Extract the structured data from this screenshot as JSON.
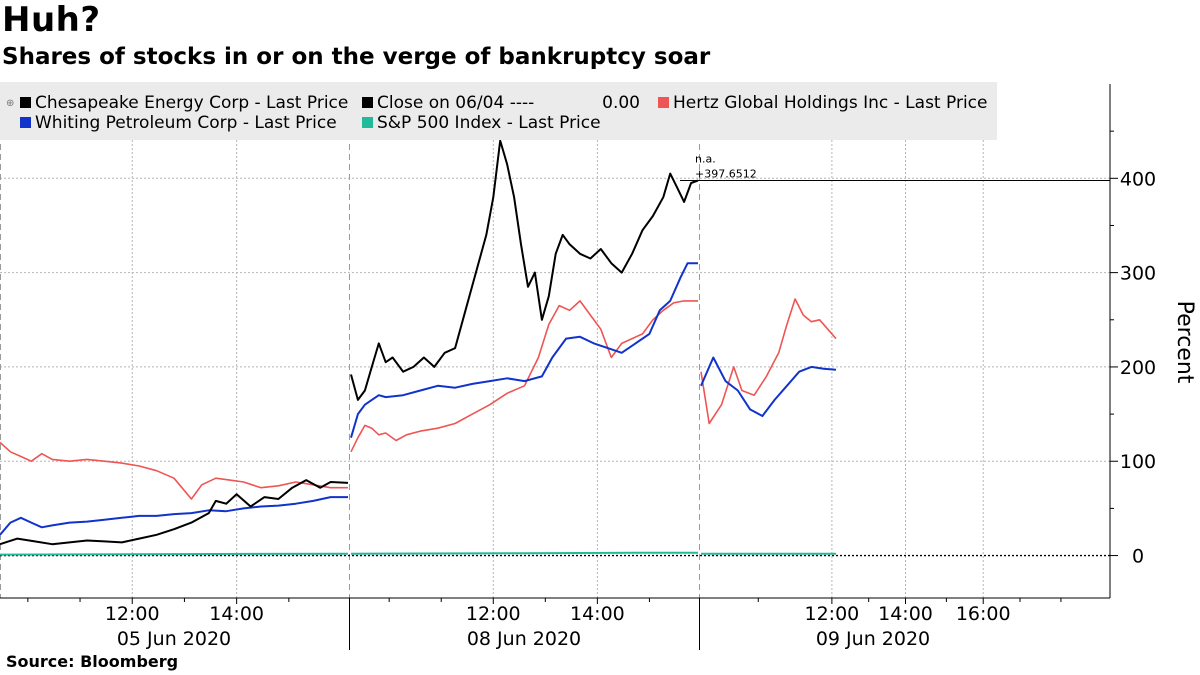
{
  "title": "Huh?",
  "subtitle": "Shares of stocks in or on the verge of bankruptcy soar",
  "source": "Source: Bloomberg",
  "chart_data": {
    "type": "line",
    "ylabel": "Percent",
    "ylim": [
      -45,
      500
    ],
    "y_ticks": [
      0,
      100,
      200,
      300,
      400
    ],
    "grid": true,
    "legend_position": "top-left",
    "x_time_ticks": [
      {
        "session": 0,
        "label": "12:00"
      },
      {
        "session": 0,
        "label": "14:00"
      },
      {
        "session": 1,
        "label": "12:00"
      },
      {
        "session": 1,
        "label": "14:00"
      },
      {
        "session": 2,
        "label": "12:00"
      },
      {
        "session": 2,
        "label": "14:00"
      },
      {
        "session": 2,
        "label": "16:00"
      }
    ],
    "x_day_labels": [
      "05 Jun 2020",
      "08 Jun 2020",
      "09 Jun 2020"
    ],
    "reference_line": {
      "name": "Close on 06/04 ----",
      "value_label": "0.00",
      "value": 0
    },
    "last_value_annotation": {
      "line1": "n.a.",
      "line2": "+397.6512",
      "value": 397.65
    },
    "series": [
      {
        "name": "Chesapeake Energy Corp - Last Price",
        "color": "#000000",
        "points": [
          [
            0,
            0.0,
            12
          ],
          [
            0,
            0.05,
            18
          ],
          [
            0,
            0.1,
            15
          ],
          [
            0,
            0.15,
            12
          ],
          [
            0,
            0.2,
            14
          ],
          [
            0,
            0.25,
            16
          ],
          [
            0,
            0.3,
            15
          ],
          [
            0,
            0.35,
            14
          ],
          [
            0,
            0.4,
            18
          ],
          [
            0,
            0.45,
            22
          ],
          [
            0,
            0.5,
            28
          ],
          [
            0,
            0.55,
            35
          ],
          [
            0,
            0.6,
            45
          ],
          [
            0,
            0.62,
            58
          ],
          [
            0,
            0.65,
            55
          ],
          [
            0,
            0.68,
            65
          ],
          [
            0,
            0.72,
            52
          ],
          [
            0,
            0.76,
            62
          ],
          [
            0,
            0.8,
            60
          ],
          [
            0,
            0.84,
            72
          ],
          [
            0,
            0.88,
            80
          ],
          [
            0,
            0.92,
            72
          ],
          [
            0,
            0.95,
            78
          ],
          [
            0,
            1.0,
            77
          ],
          [
            1,
            0.0,
            192
          ],
          [
            1,
            0.02,
            165
          ],
          [
            1,
            0.04,
            175
          ],
          [
            1,
            0.06,
            200
          ],
          [
            1,
            0.08,
            225
          ],
          [
            1,
            0.1,
            205
          ],
          [
            1,
            0.12,
            210
          ],
          [
            1,
            0.15,
            195
          ],
          [
            1,
            0.18,
            200
          ],
          [
            1,
            0.21,
            210
          ],
          [
            1,
            0.24,
            200
          ],
          [
            1,
            0.27,
            215
          ],
          [
            1,
            0.3,
            220
          ],
          [
            1,
            0.33,
            260
          ],
          [
            1,
            0.36,
            300
          ],
          [
            1,
            0.39,
            340
          ],
          [
            1,
            0.41,
            380
          ],
          [
            1,
            0.43,
            440
          ],
          [
            1,
            0.45,
            415
          ],
          [
            1,
            0.47,
            380
          ],
          [
            1,
            0.49,
            330
          ],
          [
            1,
            0.51,
            285
          ],
          [
            1,
            0.53,
            300
          ],
          [
            1,
            0.55,
            250
          ],
          [
            1,
            0.57,
            275
          ],
          [
            1,
            0.59,
            320
          ],
          [
            1,
            0.61,
            340
          ],
          [
            1,
            0.63,
            330
          ],
          [
            1,
            0.66,
            320
          ],
          [
            1,
            0.69,
            315
          ],
          [
            1,
            0.72,
            325
          ],
          [
            1,
            0.75,
            310
          ],
          [
            1,
            0.78,
            300
          ],
          [
            1,
            0.81,
            320
          ],
          [
            1,
            0.84,
            345
          ],
          [
            1,
            0.87,
            360
          ],
          [
            1,
            0.9,
            380
          ],
          [
            1,
            0.92,
            405
          ],
          [
            1,
            0.94,
            390
          ],
          [
            1,
            0.96,
            375
          ],
          [
            1,
            0.98,
            395
          ],
          [
            1,
            1.0,
            397.65
          ]
        ]
      },
      {
        "name": "Whiting Petroleum Corp - Last Price",
        "color": "#1133cc",
        "points": [
          [
            0,
            0.0,
            22
          ],
          [
            0,
            0.03,
            35
          ],
          [
            0,
            0.06,
            40
          ],
          [
            0,
            0.09,
            35
          ],
          [
            0,
            0.12,
            30
          ],
          [
            0,
            0.15,
            32
          ],
          [
            0,
            0.2,
            35
          ],
          [
            0,
            0.25,
            36
          ],
          [
            0,
            0.3,
            38
          ],
          [
            0,
            0.35,
            40
          ],
          [
            0,
            0.4,
            42
          ],
          [
            0,
            0.45,
            42
          ],
          [
            0,
            0.5,
            44
          ],
          [
            0,
            0.55,
            45
          ],
          [
            0,
            0.6,
            48
          ],
          [
            0,
            0.65,
            47
          ],
          [
            0,
            0.7,
            50
          ],
          [
            0,
            0.75,
            52
          ],
          [
            0,
            0.8,
            53
          ],
          [
            0,
            0.85,
            55
          ],
          [
            0,
            0.9,
            58
          ],
          [
            0,
            0.95,
            62
          ],
          [
            0,
            1.0,
            62
          ],
          [
            1,
            0.0,
            125
          ],
          [
            1,
            0.02,
            150
          ],
          [
            1,
            0.04,
            160
          ],
          [
            1,
            0.06,
            165
          ],
          [
            1,
            0.08,
            170
          ],
          [
            1,
            0.1,
            168
          ],
          [
            1,
            0.15,
            170
          ],
          [
            1,
            0.2,
            175
          ],
          [
            1,
            0.25,
            180
          ],
          [
            1,
            0.3,
            178
          ],
          [
            1,
            0.35,
            182
          ],
          [
            1,
            0.4,
            185
          ],
          [
            1,
            0.45,
            188
          ],
          [
            1,
            0.5,
            185
          ],
          [
            1,
            0.55,
            190
          ],
          [
            1,
            0.58,
            210
          ],
          [
            1,
            0.62,
            230
          ],
          [
            1,
            0.66,
            232
          ],
          [
            1,
            0.7,
            225
          ],
          [
            1,
            0.74,
            220
          ],
          [
            1,
            0.78,
            215
          ],
          [
            1,
            0.82,
            225
          ],
          [
            1,
            0.86,
            235
          ],
          [
            1,
            0.89,
            260
          ],
          [
            1,
            0.92,
            270
          ],
          [
            1,
            0.95,
            295
          ],
          [
            1,
            0.97,
            310
          ],
          [
            1,
            1.0,
            310
          ],
          [
            2,
            0.0,
            180
          ],
          [
            2,
            0.03,
            210
          ],
          [
            2,
            0.06,
            185
          ],
          [
            2,
            0.09,
            175
          ],
          [
            2,
            0.12,
            155
          ],
          [
            2,
            0.15,
            148
          ],
          [
            2,
            0.18,
            165
          ],
          [
            2,
            0.21,
            180
          ],
          [
            2,
            0.24,
            195
          ],
          [
            2,
            0.27,
            200
          ],
          [
            2,
            0.3,
            198
          ],
          [
            2,
            0.33,
            197
          ]
        ]
      },
      {
        "name": "Hertz Global Holdings Inc - Last Price",
        "color": "#ee5555",
        "points": [
          [
            0,
            0.0,
            120
          ],
          [
            0,
            0.03,
            110
          ],
          [
            0,
            0.06,
            105
          ],
          [
            0,
            0.09,
            100
          ],
          [
            0,
            0.12,
            108
          ],
          [
            0,
            0.15,
            102
          ],
          [
            0,
            0.2,
            100
          ],
          [
            0,
            0.25,
            102
          ],
          [
            0,
            0.3,
            100
          ],
          [
            0,
            0.35,
            98
          ],
          [
            0,
            0.4,
            95
          ],
          [
            0,
            0.45,
            90
          ],
          [
            0,
            0.5,
            82
          ],
          [
            0,
            0.55,
            60
          ],
          [
            0,
            0.58,
            75
          ],
          [
            0,
            0.62,
            82
          ],
          [
            0,
            0.66,
            80
          ],
          [
            0,
            0.7,
            78
          ],
          [
            0,
            0.75,
            72
          ],
          [
            0,
            0.8,
            74
          ],
          [
            0,
            0.85,
            78
          ],
          [
            0,
            0.9,
            75
          ],
          [
            0,
            0.95,
            72
          ],
          [
            0,
            1.0,
            72
          ],
          [
            1,
            0.0,
            110
          ],
          [
            1,
            0.02,
            125
          ],
          [
            1,
            0.04,
            138
          ],
          [
            1,
            0.06,
            135
          ],
          [
            1,
            0.08,
            128
          ],
          [
            1,
            0.1,
            130
          ],
          [
            1,
            0.13,
            122
          ],
          [
            1,
            0.16,
            128
          ],
          [
            1,
            0.2,
            132
          ],
          [
            1,
            0.25,
            135
          ],
          [
            1,
            0.3,
            140
          ],
          [
            1,
            0.35,
            150
          ],
          [
            1,
            0.4,
            160
          ],
          [
            1,
            0.45,
            172
          ],
          [
            1,
            0.5,
            180
          ],
          [
            1,
            0.54,
            210
          ],
          [
            1,
            0.57,
            245
          ],
          [
            1,
            0.6,
            265
          ],
          [
            1,
            0.63,
            260
          ],
          [
            1,
            0.66,
            270
          ],
          [
            1,
            0.69,
            255
          ],
          [
            1,
            0.72,
            240
          ],
          [
            1,
            0.75,
            210
          ],
          [
            1,
            0.78,
            225
          ],
          [
            1,
            0.81,
            230
          ],
          [
            1,
            0.84,
            235
          ],
          [
            1,
            0.87,
            250
          ],
          [
            1,
            0.9,
            260
          ],
          [
            1,
            0.93,
            268
          ],
          [
            1,
            0.96,
            270
          ],
          [
            1,
            1.0,
            270
          ],
          [
            2,
            0.0,
            195
          ],
          [
            2,
            0.02,
            140
          ],
          [
            2,
            0.05,
            160
          ],
          [
            2,
            0.08,
            200
          ],
          [
            2,
            0.1,
            175
          ],
          [
            2,
            0.13,
            170
          ],
          [
            2,
            0.16,
            190
          ],
          [
            2,
            0.19,
            215
          ],
          [
            2,
            0.21,
            245
          ],
          [
            2,
            0.23,
            272
          ],
          [
            2,
            0.25,
            255
          ],
          [
            2,
            0.27,
            248
          ],
          [
            2,
            0.29,
            250
          ],
          [
            2,
            0.31,
            240
          ],
          [
            2,
            0.33,
            230
          ]
        ]
      },
      {
        "name": "S&P 500 Index - Last Price",
        "color": "#22bb99",
        "points": [
          [
            0,
            0.0,
            1
          ],
          [
            0,
            0.5,
            1.5
          ],
          [
            0,
            1.0,
            2
          ],
          [
            1,
            0.0,
            2
          ],
          [
            1,
            0.5,
            2.5
          ],
          [
            1,
            0.9,
            3
          ],
          [
            1,
            1.0,
            3
          ],
          [
            2,
            0.0,
            2
          ],
          [
            2,
            0.33,
            2
          ]
        ]
      }
    ]
  }
}
